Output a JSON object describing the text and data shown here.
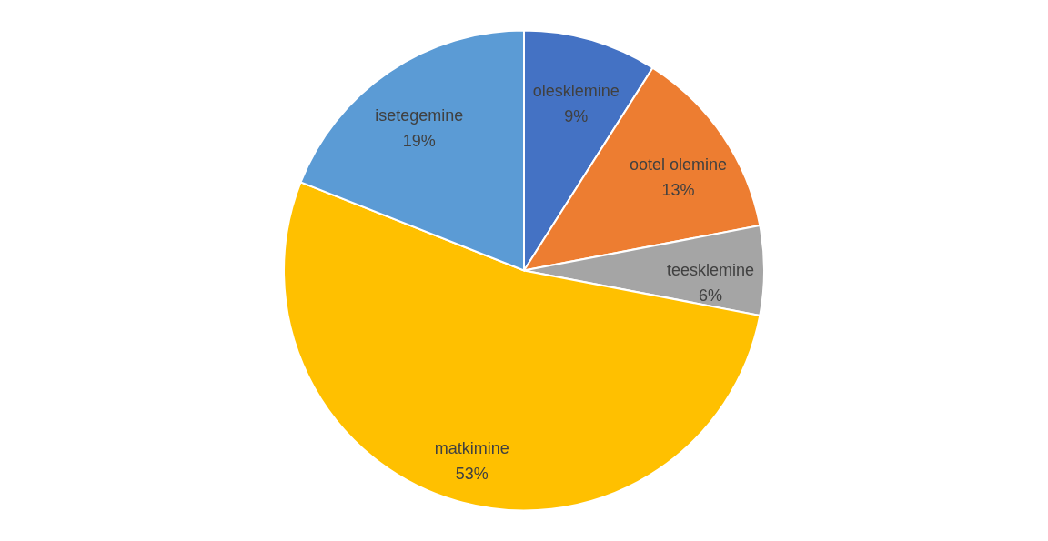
{
  "chart_data": {
    "type": "pie",
    "categories": [
      "olesklemine",
      "ootel olemine",
      "teesklemine",
      "matkimine",
      "isetegemine"
    ],
    "values": [
      9,
      13,
      6,
      53,
      19
    ],
    "colors": [
      "#4472c4",
      "#ed7d31",
      "#a5a5a5",
      "#ffc000",
      "#5b9bd5"
    ],
    "value_labels": [
      "9%",
      "13%",
      "6%",
      "53%",
      "19%"
    ],
    "legend": false
  }
}
